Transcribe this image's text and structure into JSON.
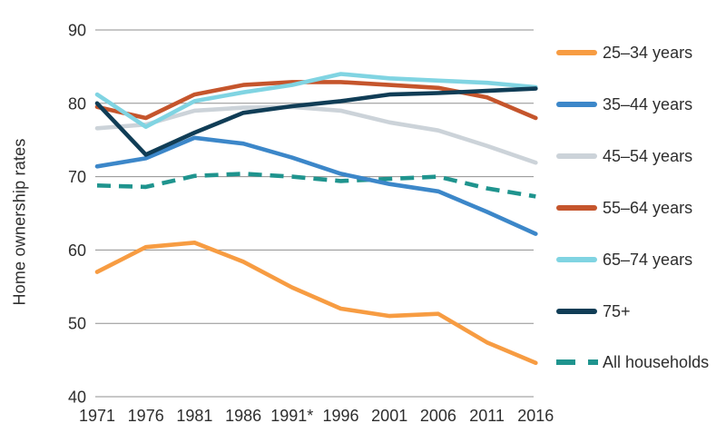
{
  "figure": {
    "background": "#ffffff",
    "text_color": "#2e2e2e",
    "gridline_color": "#8f8f8f"
  },
  "chart_data": {
    "type": "line",
    "title": "",
    "xlabel": "",
    "ylabel": "Home ownership rates",
    "ylim": [
      40,
      90
    ],
    "yticks": [
      40,
      50,
      60,
      70,
      80,
      90
    ],
    "grid": "horizontal",
    "legend_position": "right",
    "categories": [
      "1971",
      "1976",
      "1981",
      "1986",
      "1991*",
      "1996",
      "2001",
      "2006",
      "2011",
      "2016"
    ],
    "series": [
      {
        "name": "25–34 years",
        "color": "#F79C42",
        "dashed": false,
        "values": [
          57.0,
          60.4,
          61.0,
          58.4,
          54.9,
          52.0,
          51.0,
          51.3,
          47.4,
          44.6
        ]
      },
      {
        "name": "35–44 years",
        "color": "#3C87C9",
        "dashed": false,
        "values": [
          71.4,
          72.5,
          75.3,
          74.5,
          72.6,
          70.4,
          69.0,
          68.0,
          65.2,
          62.2
        ]
      },
      {
        "name": "45–54 years",
        "color": "#CCD3D9",
        "dashed": false,
        "values": [
          76.6,
          77.1,
          79.0,
          79.4,
          79.5,
          79.0,
          77.4,
          76.3,
          74.2,
          71.9
        ]
      },
      {
        "name": "55–64 years",
        "color": "#C5552C",
        "dashed": false,
        "values": [
          79.5,
          78.0,
          81.2,
          82.5,
          82.9,
          82.9,
          82.5,
          82.1,
          80.8,
          78.0
        ]
      },
      {
        "name": "65–74 years",
        "color": "#80D4E2",
        "dashed": false,
        "values": [
          81.2,
          76.8,
          80.3,
          81.5,
          82.5,
          84.0,
          83.4,
          83.1,
          82.8,
          82.2
        ]
      },
      {
        "name": "75+",
        "color": "#103D56",
        "dashed": false,
        "values": [
          80.0,
          73.0,
          76.0,
          78.7,
          79.6,
          80.3,
          81.2,
          81.4,
          81.7,
          82.0
        ]
      },
      {
        "name": "All households",
        "color": "#1F948E",
        "dashed": true,
        "values": [
          68.8,
          68.6,
          70.1,
          70.4,
          70.0,
          69.4,
          69.7,
          70.0,
          68.4,
          67.3
        ]
      }
    ]
  }
}
